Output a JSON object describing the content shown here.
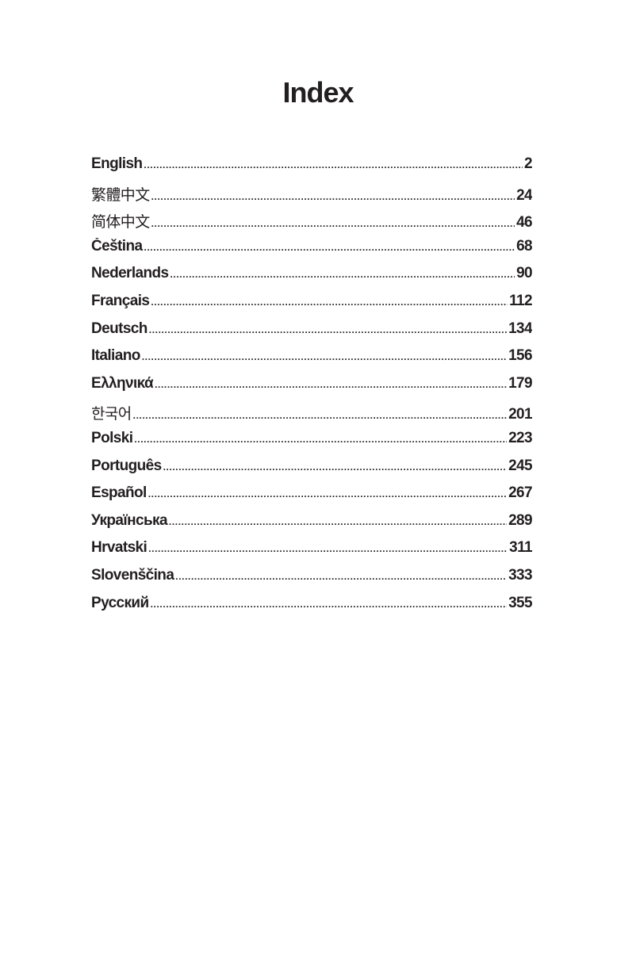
{
  "title": "Index",
  "entries": [
    {
      "label": "English",
      "page": "2"
    },
    {
      "label": "繁體中文",
      "page": "24"
    },
    {
      "label": "简体中文",
      "page": "46"
    },
    {
      "label": "Čeština",
      "page": "68"
    },
    {
      "label": "Nederlands",
      "page": "90"
    },
    {
      "label": "Français",
      "page": "112"
    },
    {
      "label": "Deutsch",
      "page": "134"
    },
    {
      "label": "Italiano",
      "page": "156"
    },
    {
      "label": "Ελληνικά",
      "page": "179"
    },
    {
      "label": "한국어",
      "page": "201"
    },
    {
      "label": "Polski",
      "page": "223"
    },
    {
      "label": "Português",
      "page": "245"
    },
    {
      "label": "Español",
      "page": "267"
    },
    {
      "label": "Українська",
      "page": "289"
    },
    {
      "label": "Hrvatski",
      "page": "311"
    },
    {
      "label": "Slovenščina",
      "page": "333"
    },
    {
      "label": "Русский",
      "page": "355"
    }
  ]
}
